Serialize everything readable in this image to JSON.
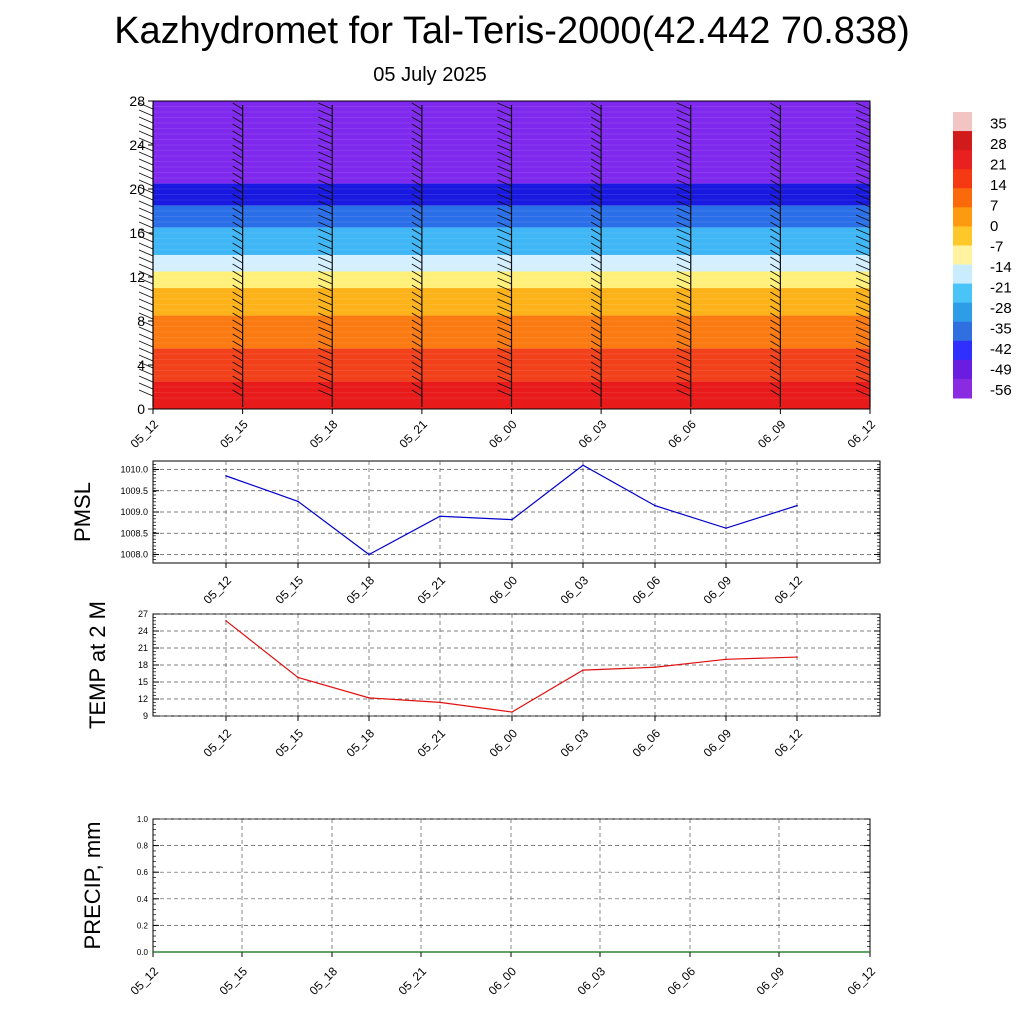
{
  "title": "Kazhydromet for Tal-Teris-2000(42.442 70.838)",
  "subtitle": "05 July 2025",
  "chart_data": [
    {
      "type": "heatmap",
      "title": "",
      "x": [
        "05_12",
        "05_15",
        "05_18",
        "05_21",
        "06_00",
        "06_03",
        "06_06",
        "06_09",
        "06_12"
      ],
      "y_ticks": [
        0,
        4,
        8,
        12,
        16,
        20,
        24,
        28
      ],
      "ylim": [
        0,
        28
      ],
      "colorbar": {
        "labels": [
          "35",
          "28",
          "21",
          "14",
          "7",
          "0",
          "-7",
          "-14",
          "-21",
          "-28",
          "-35",
          "-42",
          "-49",
          "-56"
        ],
        "colors": [
          "#f2c4c4",
          "#d11a1a",
          "#e82020",
          "#f53a13",
          "#fb6a0a",
          "#fd9a10",
          "#ffc82a",
          "#fff2a0",
          "#c9ecff",
          "#48c4f8",
          "#2e9de8",
          "#2f6fe0",
          "#2f2fff",
          "#6a1de0",
          "#8a2be2"
        ]
      },
      "wind_barbs": true,
      "bands": [
        {
          "ymax": 2.5,
          "color": "#e81a1a"
        },
        {
          "ymax": 5.5,
          "color": "#f2401a"
        },
        {
          "ymax": 8.5,
          "color": "#fb7a12"
        },
        {
          "ymax": 11.0,
          "color": "#fdb21a"
        },
        {
          "ymax": 12.5,
          "color": "#fff07a"
        },
        {
          "ymax": 14.0,
          "color": "#d4efff"
        },
        {
          "ymax": 16.5,
          "color": "#3fb6f5"
        },
        {
          "ymax": 18.5,
          "color": "#2a6fe8"
        },
        {
          "ymax": 20.5,
          "color": "#1818e0"
        },
        {
          "ymax": 28.0,
          "color": "#7f28ee"
        }
      ]
    },
    {
      "type": "line",
      "ylabel": "PMSL",
      "x": [
        "05_12",
        "05_15",
        "05_18",
        "05_21",
        "06_00",
        "06_03",
        "06_06",
        "06_09",
        "06_12"
      ],
      "y_ticks": [
        "1008.0",
        "1008.5",
        "1009.0",
        "1009.5",
        "1010.0"
      ],
      "ylim": [
        1007.8,
        1010.2
      ],
      "color": "#0000cc",
      "grid": true,
      "values": [
        1009.85,
        1009.25,
        1008.0,
        1008.9,
        1008.82,
        1010.1,
        1009.15,
        1008.62,
        1009.15
      ]
    },
    {
      "type": "line",
      "ylabel": "TEMP at 2 M",
      "x": [
        "05_12",
        "05_15",
        "05_18",
        "05_21",
        "06_00",
        "06_03",
        "06_06",
        "06_09",
        "06_12"
      ],
      "y_ticks": [
        "9",
        "12",
        "15",
        "18",
        "21",
        "24",
        "27"
      ],
      "ylim": [
        9,
        27
      ],
      "color": "#e01010",
      "grid": true,
      "values": [
        25.8,
        15.8,
        12.2,
        11.4,
        9.7,
        17.1,
        17.6,
        19.0,
        19.4
      ]
    },
    {
      "type": "line",
      "ylabel": "PRECIP, mm",
      "x": [
        "05_12",
        "05_15",
        "05_18",
        "05_21",
        "06_00",
        "06_03",
        "06_06",
        "06_09",
        "06_12"
      ],
      "y_ticks": [
        "0.0",
        "0.2",
        "0.4",
        "0.6",
        "0.8",
        "1.0"
      ],
      "ylim": [
        0,
        1
      ],
      "color": "#0a6a0a",
      "grid": true,
      "values": [
        0,
        0,
        0,
        0,
        0,
        0,
        0,
        0,
        0
      ]
    }
  ]
}
